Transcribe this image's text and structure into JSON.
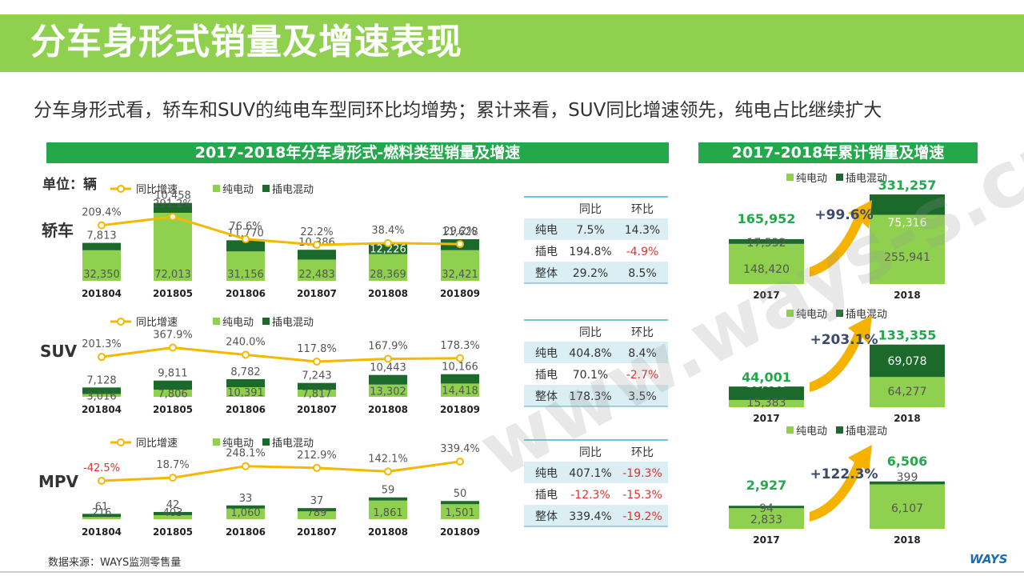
{
  "header": {
    "title": "分车身形式销量及增速表现",
    "subtitle": "分车身形式看，轿车和SUV的纯电车型同环比均增势；累计来看，SUV同比增速领先，纯电占比继续扩大"
  },
  "left_banner": "2017-2018年分车身形式-燃料类型销量及增速",
  "right_banner": "2017-2018年累计销量及增速",
  "unit_label": "单位：辆",
  "legend": {
    "line": "同比增速",
    "bev": "纯电动",
    "phev": "插电混动"
  },
  "source": "数据来源：WAYS监测零售量",
  "logo": "WAYS",
  "watermark": "www.ways-s.cn",
  "colors": {
    "bev": "#8fd14f",
    "phev": "#1b6a2c",
    "line": "#f5b800",
    "banner": "#23a94b",
    "negative": "#e03030",
    "table_row": "#daeef3"
  },
  "chart_data": [
    {
      "type": "bar",
      "name": "轿车",
      "categories": [
        "201804",
        "201805",
        "201806",
        "201807",
        "201808",
        "201809"
      ],
      "series": [
        {
          "name": "纯电动",
          "values": [
            32350,
            72013,
            31156,
            22483,
            28369,
            32421
          ]
        },
        {
          "name": "插电混动",
          "values": [
            7813,
            10458,
            11770,
            10386,
            12226,
            11628
          ]
        }
      ],
      "growth": {
        "name": "同比增速",
        "values": [
          209.4,
          291.2,
          76.6,
          22.2,
          38.4,
          29.2
        ],
        "labels": [
          "209.4%",
          "291.2%",
          "76.6%",
          "22.2%",
          "38.4%",
          "29.2%"
        ]
      }
    },
    {
      "type": "bar",
      "name": "SUV",
      "categories": [
        "201804",
        "201805",
        "201806",
        "201807",
        "201808",
        "201809"
      ],
      "series": [
        {
          "name": "纯电动",
          "values": [
            3016,
            7806,
            10391,
            7817,
            13302,
            14418
          ]
        },
        {
          "name": "插电混动",
          "values": [
            7128,
            9811,
            8782,
            7243,
            10443,
            10166
          ]
        }
      ],
      "growth": {
        "name": "同比增速",
        "values": [
          201.3,
          367.9,
          240.0,
          117.8,
          167.9,
          178.3
        ],
        "labels": [
          "201.3%",
          "367.9%",
          "240.0%",
          "117.8%",
          "167.9%",
          "178.3%"
        ]
      }
    },
    {
      "type": "bar",
      "name": "MPV",
      "categories": [
        "201804",
        "201805",
        "201806",
        "201807",
        "201808",
        "201809"
      ],
      "series": [
        {
          "name": "纯电动",
          "values": [
            216,
            403,
            1060,
            789,
            1861,
            1501
          ]
        },
        {
          "name": "插电混动",
          "values": [
            61,
            42,
            33,
            37,
            59,
            50
          ]
        }
      ],
      "growth": {
        "name": "同比增速",
        "values": [
          -42.5,
          18.7,
          248.1,
          212.9,
          142.1,
          339.4
        ],
        "labels": [
          "-42.5%",
          "18.7%",
          "248.1%",
          "212.9%",
          "142.1%",
          "339.4%"
        ]
      }
    },
    {
      "type": "bar",
      "name": "轿车累计",
      "categories": [
        "2017",
        "2018"
      ],
      "series": [
        {
          "name": "纯电动",
          "values": [
            148420,
            255941
          ]
        },
        {
          "name": "插电混动",
          "values": [
            17532,
            75316
          ]
        }
      ],
      "totals": [
        "165,952",
        "331,257"
      ],
      "growth_label": "+99.6%"
    },
    {
      "type": "bar",
      "name": "SUV累计",
      "categories": [
        "2017",
        "2018"
      ],
      "series": [
        {
          "name": "纯电动",
          "values": [
            15383,
            64277
          ]
        },
        {
          "name": "插电混动",
          "values": [
            28618,
            69078
          ]
        }
      ],
      "totals": [
        "44,001",
        "133,355"
      ],
      "growth_label": "+203.1%"
    },
    {
      "type": "bar",
      "name": "MPV累计",
      "categories": [
        "2017",
        "2018"
      ],
      "series": [
        {
          "name": "纯电动",
          "values": [
            2833,
            6107
          ]
        },
        {
          "name": "插电混动",
          "values": [
            94,
            399
          ]
        }
      ],
      "totals": [
        "2,927",
        "6,506"
      ],
      "growth_label": "+122.3%"
    }
  ],
  "tables": [
    {
      "headers": [
        "同比",
        "环比"
      ],
      "rows": [
        [
          "纯电",
          "7.5%",
          "14.3%"
        ],
        [
          "插电",
          "194.8%",
          "-4.9%"
        ],
        [
          "整体",
          "29.2%",
          "8.5%"
        ]
      ]
    },
    {
      "headers": [
        "同比",
        "环比"
      ],
      "rows": [
        [
          "纯电",
          "404.8%",
          "8.4%"
        ],
        [
          "插电",
          "70.1%",
          "-2.7%"
        ],
        [
          "整体",
          "178.3%",
          "3.5%"
        ]
      ]
    },
    {
      "headers": [
        "同比",
        "环比"
      ],
      "rows": [
        [
          "纯电",
          "407.1%",
          "-19.3%"
        ],
        [
          "插电",
          "-12.3%",
          "-15.3%"
        ],
        [
          "整体",
          "339.4%",
          "-19.2%"
        ]
      ]
    }
  ]
}
